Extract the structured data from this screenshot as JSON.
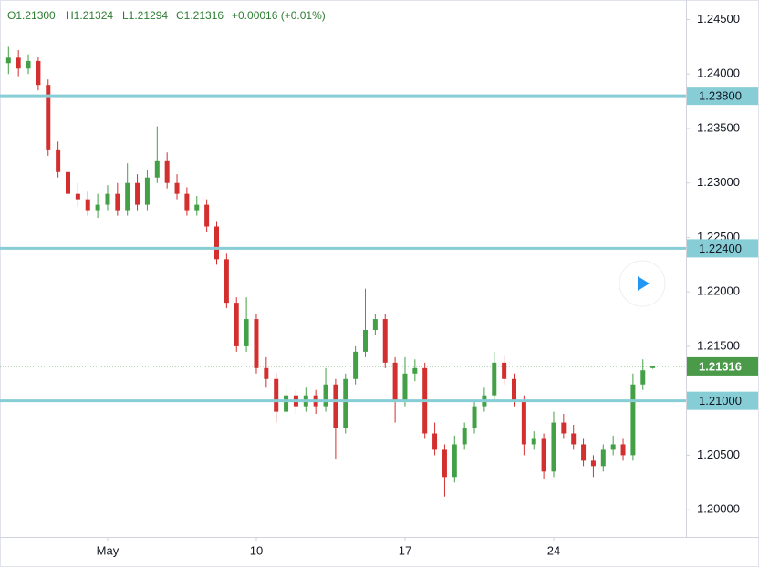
{
  "chart_data": {
    "type": "candlestick",
    "header": [
      "O1.21300",
      "H1.21324",
      "L1.21294",
      "C1.21316",
      "+0.00016 (+0.01%)"
    ],
    "series": [
      {
        "up_color": "#43a047",
        "down_color": "#d32f2f",
        "open": [
          1.241,
          1.2415,
          1.2405,
          1.2412,
          1.239,
          1.233,
          1.231,
          1.229,
          1.2285,
          1.2275,
          1.228,
          1.229,
          1.2275,
          1.23,
          1.228,
          1.2305,
          1.232,
          1.23,
          1.229,
          1.2275,
          1.228,
          1.226,
          1.223,
          1.219,
          1.215,
          1.2175,
          1.213,
          1.212,
          1.209,
          1.2105,
          1.2095,
          1.2105,
          1.2095,
          1.2115,
          1.2075,
          1.212,
          1.2145,
          1.2165,
          1.2175,
          1.2135,
          1.21,
          1.2125,
          1.213,
          1.207,
          1.2055,
          1.203,
          1.206,
          1.2075,
          1.2095,
          1.2105,
          1.2135,
          1.212,
          1.21,
          1.206,
          1.2065,
          1.2035,
          1.208,
          1.207,
          1.206,
          1.2045,
          1.204,
          1.2055,
          1.206,
          1.205,
          1.2115,
          1.213
        ],
        "high": [
          1.2425,
          1.2422,
          1.2418,
          1.2416,
          1.2395,
          1.2338,
          1.2318,
          1.23,
          1.2292,
          1.229,
          1.2298,
          1.23,
          1.2318,
          1.2308,
          1.2312,
          1.2352,
          1.2328,
          1.2308,
          1.2296,
          1.2288,
          1.2285,
          1.2265,
          1.2235,
          1.2195,
          1.2195,
          1.218,
          1.214,
          1.2125,
          1.2112,
          1.211,
          1.2112,
          1.211,
          1.213,
          1.212,
          1.2125,
          1.215,
          1.2203,
          1.218,
          1.218,
          1.214,
          1.214,
          1.2138,
          1.2135,
          1.208,
          1.206,
          1.2068,
          1.208,
          1.21,
          1.2112,
          1.2145,
          1.2142,
          1.2125,
          1.2105,
          1.2072,
          1.207,
          1.209,
          1.2088,
          1.2078,
          1.2065,
          1.205,
          1.206,
          1.2068,
          1.2065,
          1.2125,
          1.2138,
          1.21324
        ],
        "low": [
          1.24,
          1.2398,
          1.24,
          1.2385,
          1.2325,
          1.2305,
          1.2285,
          1.2278,
          1.227,
          1.2268,
          1.2275,
          1.227,
          1.227,
          1.2275,
          1.2275,
          1.23,
          1.2295,
          1.2285,
          1.227,
          1.227,
          1.2255,
          1.2225,
          1.2185,
          1.2145,
          1.2145,
          1.2125,
          1.2112,
          1.208,
          1.2085,
          1.2088,
          1.209,
          1.2088,
          1.209,
          1.2047,
          1.207,
          1.2115,
          1.214,
          1.216,
          1.213,
          1.208,
          1.2095,
          1.2118,
          1.2065,
          1.205,
          1.2012,
          1.2025,
          1.2055,
          1.207,
          1.209,
          1.21,
          1.2115,
          1.2095,
          1.205,
          1.2055,
          1.2028,
          1.203,
          1.2065,
          1.2055,
          1.204,
          1.203,
          1.2035,
          1.205,
          1.2045,
          1.2045,
          1.211,
          1.21294
        ],
        "close": [
          1.2415,
          1.2405,
          1.2412,
          1.239,
          1.233,
          1.231,
          1.229,
          1.2285,
          1.2275,
          1.228,
          1.229,
          1.2275,
          1.23,
          1.228,
          1.2305,
          1.232,
          1.23,
          1.229,
          1.2275,
          1.228,
          1.226,
          1.223,
          1.219,
          1.215,
          1.2175,
          1.213,
          1.212,
          1.209,
          1.2105,
          1.2095,
          1.2105,
          1.2095,
          1.2115,
          1.2075,
          1.212,
          1.2145,
          1.2165,
          1.2175,
          1.2135,
          1.21,
          1.2125,
          1.213,
          1.207,
          1.2055,
          1.203,
          1.206,
          1.2075,
          1.2095,
          1.2105,
          1.2135,
          1.212,
          1.21,
          1.206,
          1.2065,
          1.2035,
          1.208,
          1.207,
          1.206,
          1.2045,
          1.204,
          1.2055,
          1.206,
          1.205,
          1.2115,
          1.2128,
          1.21316
        ]
      }
    ],
    "xticks": [
      {
        "value": 10,
        "label": "May"
      },
      {
        "value": 25,
        "label": "10"
      },
      {
        "value": 40,
        "label": "17"
      },
      {
        "value": 55,
        "label": "24"
      }
    ],
    "ylim": [
      1.1975,
      1.2468
    ],
    "yticks": [
      {
        "value": 1.2,
        "label": "1.20000"
      },
      {
        "value": 1.205,
        "label": "1.20500"
      },
      {
        "value": 1.21,
        "label": "1.21000"
      },
      {
        "value": 1.215,
        "label": "1.21500"
      },
      {
        "value": 1.22,
        "label": "1.22000"
      },
      {
        "value": 1.225,
        "label": "1.22500"
      },
      {
        "value": 1.23,
        "label": "1.23000"
      },
      {
        "value": 1.235,
        "label": "1.23500"
      },
      {
        "value": 1.24,
        "label": "1.24000"
      },
      {
        "value": 1.245,
        "label": "1.24500"
      }
    ],
    "levels": [
      {
        "value": 1.238,
        "label": "1.23800"
      },
      {
        "value": 1.224,
        "label": "1.22400"
      },
      {
        "value": 1.21,
        "label": "1.21000"
      }
    ],
    "level_color": "#86cdd6",
    "last_price": {
      "value": 1.21316,
      "label": "1.21316"
    },
    "last_price_color": "#4a9a4a"
  }
}
